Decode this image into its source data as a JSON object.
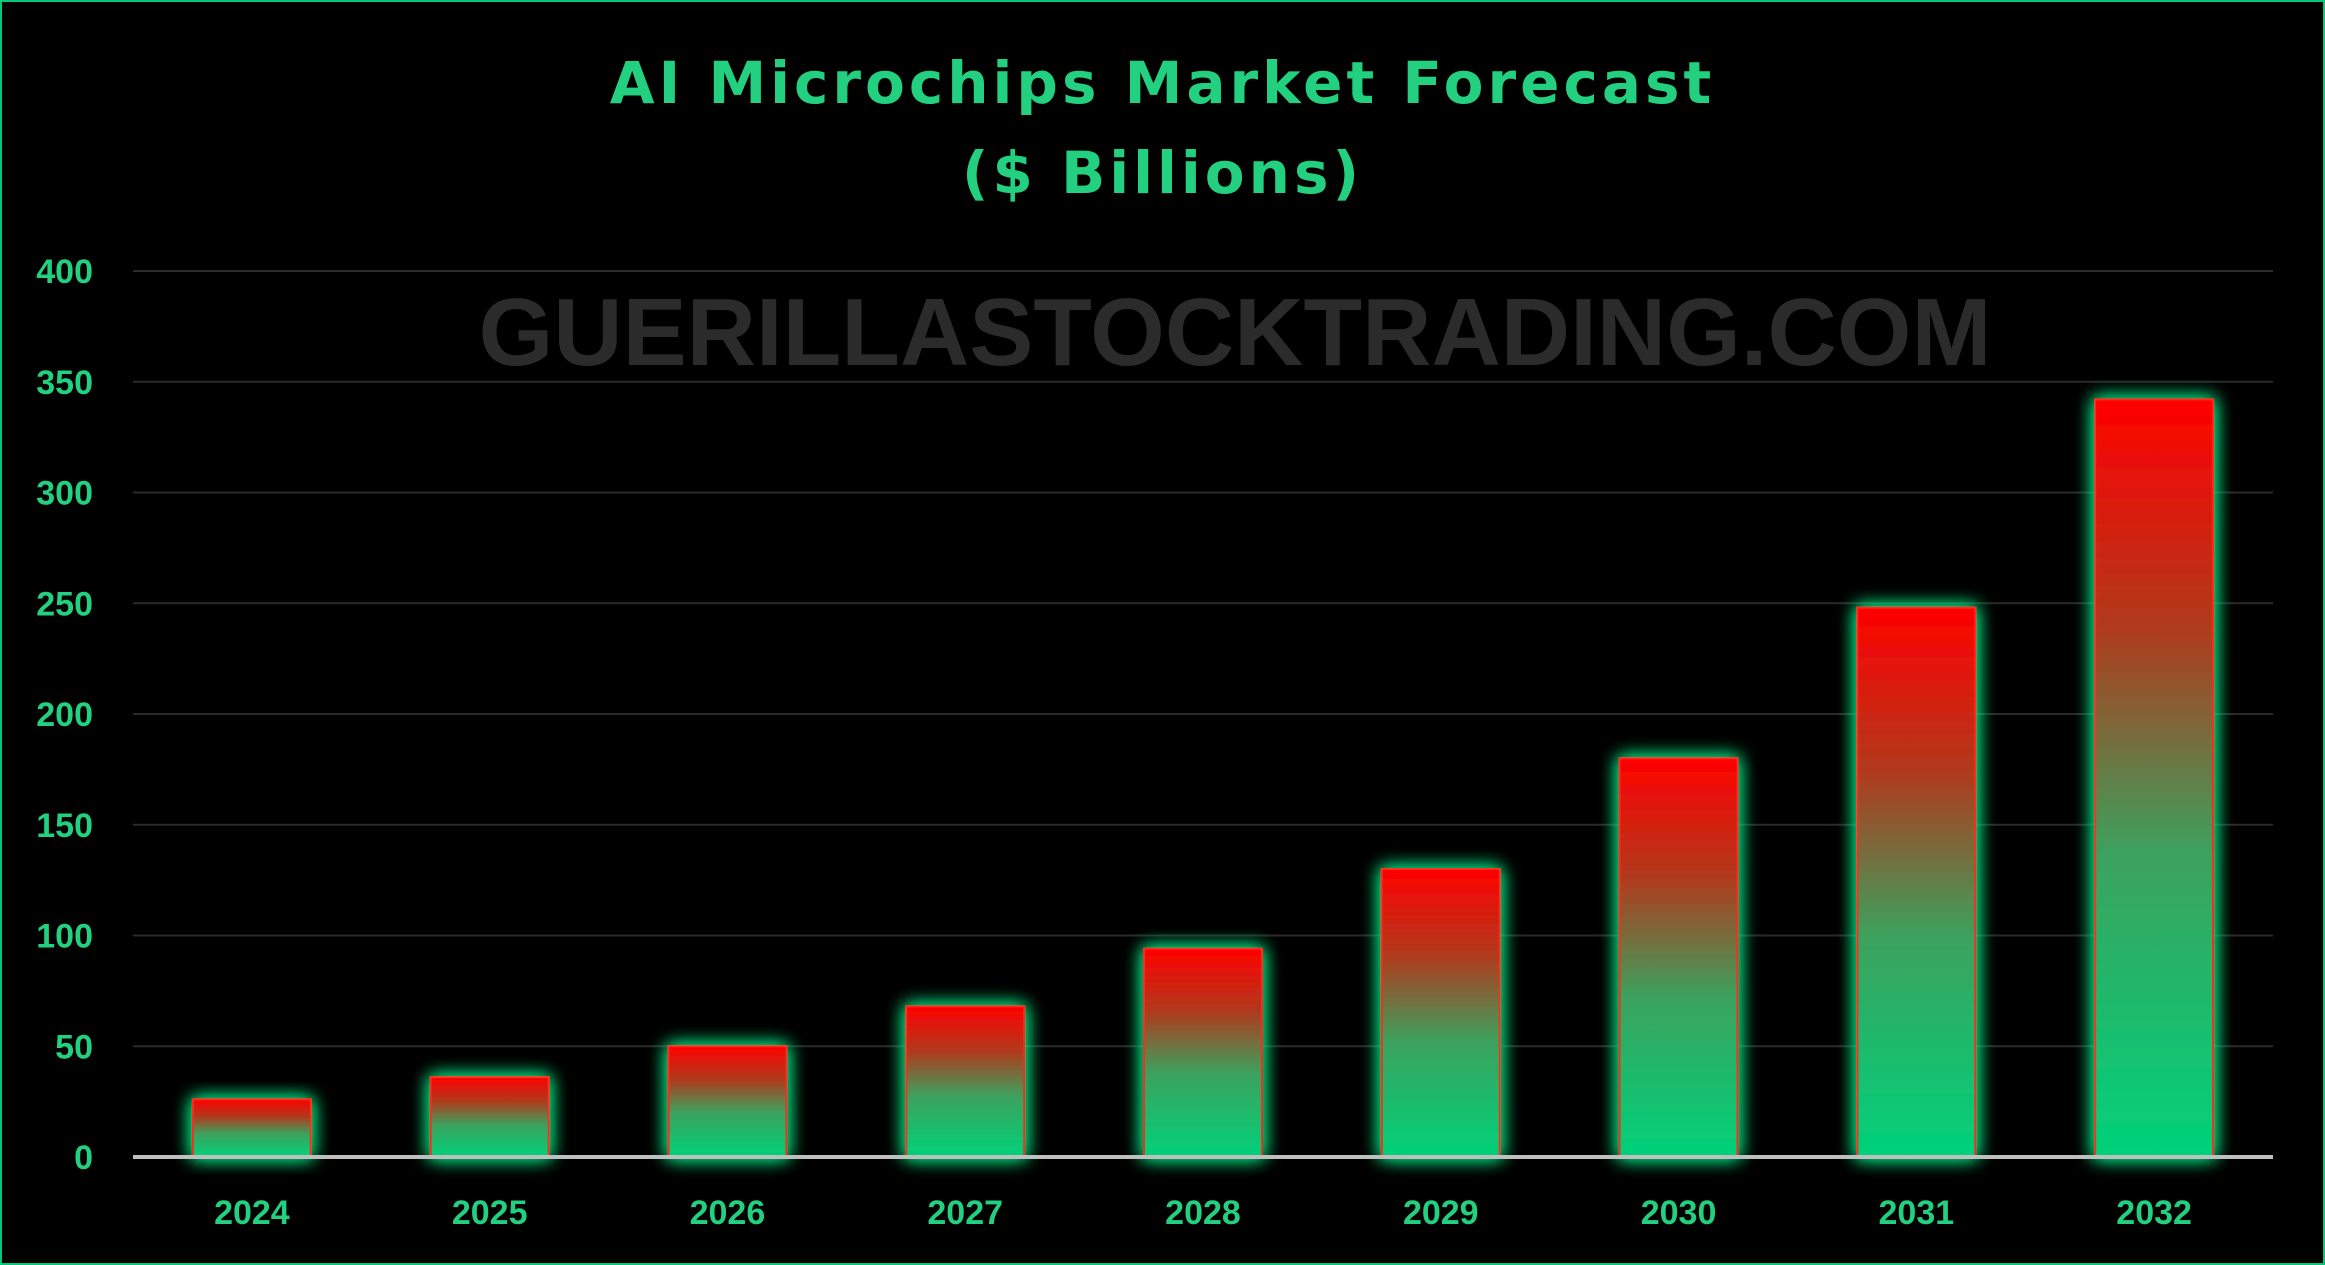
{
  "watermark": "GUERILLASTOCKTRADING.COM",
  "colors": {
    "background": "#000000",
    "text": "#22d07f",
    "bar_top": "#ff0000",
    "bar_bottom": "#00d27a",
    "glow": "#00e080",
    "grid": "#2a2a2a",
    "axis": "#bfbfbf",
    "watermark": "#2b2b2b"
  },
  "chart_data": {
    "type": "bar",
    "title": "AI Microchips Market Forecast",
    "subtitle": "($ Billions)",
    "categories": [
      "2024",
      "2025",
      "2026",
      "2027",
      "2028",
      "2029",
      "2030",
      "2031",
      "2032"
    ],
    "values": [
      26,
      36,
      50,
      68,
      94,
      130,
      180,
      248,
      342
    ],
    "ylim": [
      0,
      400
    ],
    "yticks": [
      0,
      50,
      100,
      150,
      200,
      250,
      300,
      350,
      400
    ],
    "grid": true,
    "legend": "none"
  }
}
